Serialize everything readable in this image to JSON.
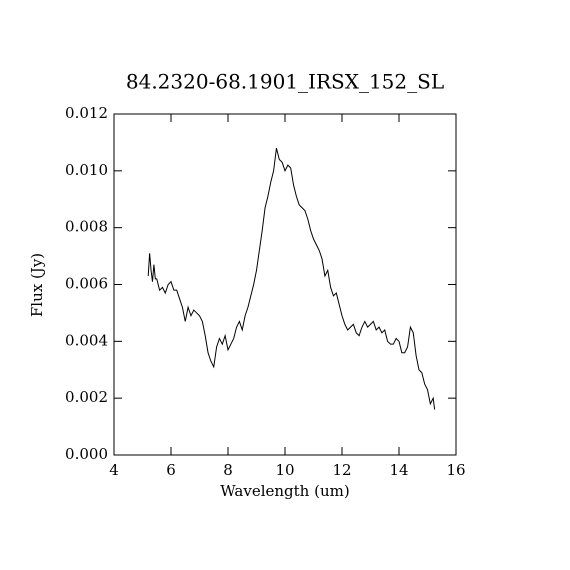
{
  "chart_data": {
    "type": "line",
    "title": "84.2320-68.1901_IRSX_152_SL",
    "xlabel": "Wavelength (um)",
    "ylabel": "Flux (Jy)",
    "x": [
      5.2,
      5.25,
      5.3,
      5.35,
      5.4,
      5.45,
      5.5,
      5.6,
      5.7,
      5.8,
      5.9,
      6.0,
      6.1,
      6.2,
      6.3,
      6.4,
      6.5,
      6.6,
      6.7,
      6.8,
      6.9,
      7.0,
      7.1,
      7.2,
      7.3,
      7.4,
      7.5,
      7.6,
      7.7,
      7.8,
      7.9,
      8.0,
      8.1,
      8.2,
      8.3,
      8.4,
      8.5,
      8.6,
      8.7,
      8.8,
      8.9,
      9.0,
      9.1,
      9.2,
      9.3,
      9.4,
      9.5,
      9.6,
      9.7,
      9.8,
      9.9,
      10.0,
      10.1,
      10.2,
      10.3,
      10.4,
      10.5,
      10.6,
      10.7,
      10.8,
      10.9,
      11.0,
      11.1,
      11.2,
      11.3,
      11.4,
      11.5,
      11.6,
      11.7,
      11.8,
      11.9,
      12.0,
      12.1,
      12.2,
      12.3,
      12.4,
      12.5,
      12.6,
      12.7,
      12.8,
      12.9,
      13.0,
      13.1,
      13.2,
      13.3,
      13.4,
      13.5,
      13.6,
      13.7,
      13.8,
      13.9,
      14.0,
      14.1,
      14.2,
      14.3,
      14.4,
      14.5,
      14.6,
      14.7,
      14.8,
      14.9,
      15.0,
      15.1,
      15.2,
      15.25
    ],
    "series": [
      {
        "color": "#000000",
        "values": [
          0.0063,
          0.0071,
          0.0065,
          0.0061,
          0.0067,
          0.0062,
          0.0062,
          0.0058,
          0.0059,
          0.0057,
          0.006,
          0.0061,
          0.0058,
          0.0058,
          0.0055,
          0.0052,
          0.0047,
          0.0052,
          0.0049,
          0.0051,
          0.005,
          0.0049,
          0.0047,
          0.0042,
          0.0036,
          0.0033,
          0.0031,
          0.0038,
          0.0041,
          0.0039,
          0.0042,
          0.0037,
          0.0039,
          0.0041,
          0.0045,
          0.0047,
          0.0044,
          0.0049,
          0.0052,
          0.0056,
          0.006,
          0.0065,
          0.0072,
          0.0079,
          0.0087,
          0.0091,
          0.0096,
          0.01,
          0.0108,
          0.0104,
          0.0103,
          0.01,
          0.0102,
          0.0101,
          0.0095,
          0.0091,
          0.0088,
          0.0087,
          0.0086,
          0.0083,
          0.0079,
          0.0076,
          0.0074,
          0.0072,
          0.0069,
          0.0063,
          0.0065,
          0.0059,
          0.0056,
          0.0057,
          0.0053,
          0.0049,
          0.0046,
          0.0044,
          0.0045,
          0.0046,
          0.0043,
          0.0042,
          0.0045,
          0.0047,
          0.0045,
          0.0046,
          0.0047,
          0.0044,
          0.0045,
          0.0043,
          0.0044,
          0.004,
          0.0039,
          0.0039,
          0.0041,
          0.004,
          0.0036,
          0.0036,
          0.0038,
          0.0045,
          0.0043,
          0.0035,
          0.003,
          0.0029,
          0.0025,
          0.0023,
          0.0018,
          0.002,
          0.0016
        ]
      }
    ],
    "xlim": [
      4,
      16
    ],
    "xticks": [
      4,
      6,
      8,
      10,
      12,
      14,
      16
    ],
    "ylim": [
      0,
      0.012
    ],
    "yticks": [
      {
        "value": 0,
        "label": "0.000"
      },
      {
        "value": 0.002,
        "label": "0.002"
      },
      {
        "value": 0.004,
        "label": "0.004"
      },
      {
        "value": 0.006,
        "label": "0.006"
      },
      {
        "value": 0.008,
        "label": "0.008"
      },
      {
        "value": 0.01,
        "label": "0.010"
      },
      {
        "value": 0.012,
        "label": "0.012"
      }
    ]
  }
}
